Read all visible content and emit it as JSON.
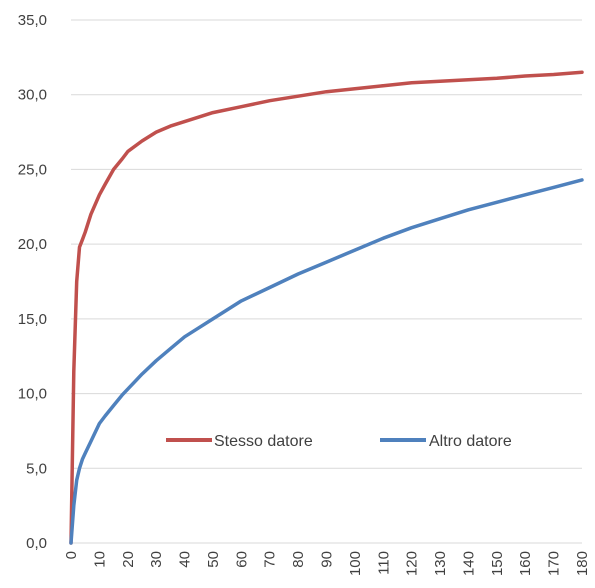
{
  "chart_data": {
    "type": "line",
    "title": "",
    "xlabel": "",
    "ylabel": "",
    "xlim": [
      0,
      180
    ],
    "ylim": [
      0,
      35
    ],
    "x_ticks": [
      "0",
      "10",
      "20",
      "30",
      "40",
      "50",
      "60",
      "70",
      "80",
      "90",
      "100",
      "110",
      "120",
      "130",
      "140",
      "150",
      "160",
      "170",
      "180"
    ],
    "y_ticks": [
      "0,0",
      "5,0",
      "10,0",
      "15,0",
      "20,0",
      "25,0",
      "30,0",
      "35,0"
    ],
    "grid": "horizontal",
    "legend_placement": "inside-center-right",
    "x": [
      0,
      1,
      2,
      3,
      4,
      5,
      7,
      10,
      12,
      15,
      18,
      20,
      25,
      30,
      35,
      40,
      45,
      50,
      60,
      70,
      80,
      90,
      100,
      110,
      120,
      130,
      140,
      150,
      160,
      170,
      180
    ],
    "series": [
      {
        "name": "Stesso datore",
        "color": "#c0504d",
        "values": [
          0,
          11.5,
          17.5,
          19.8,
          20.3,
          20.8,
          22.0,
          23.3,
          24.0,
          25.0,
          25.7,
          26.2,
          26.9,
          27.5,
          27.9,
          28.2,
          28.5,
          28.8,
          29.2,
          29.6,
          29.9,
          30.2,
          30.4,
          30.6,
          30.8,
          30.9,
          31.0,
          31.1,
          31.25,
          31.35,
          31.5
        ]
      },
      {
        "name": "Altro datore",
        "color": "#4f81bd",
        "values": [
          0,
          2.5,
          4.2,
          5.0,
          5.6,
          6.0,
          6.8,
          8.0,
          8.5,
          9.2,
          9.9,
          10.3,
          11.3,
          12.2,
          13.0,
          13.8,
          14.4,
          15.0,
          16.2,
          17.1,
          18.0,
          18.8,
          19.6,
          20.4,
          21.1,
          21.7,
          22.3,
          22.8,
          23.3,
          23.8,
          24.3
        ]
      }
    ]
  }
}
